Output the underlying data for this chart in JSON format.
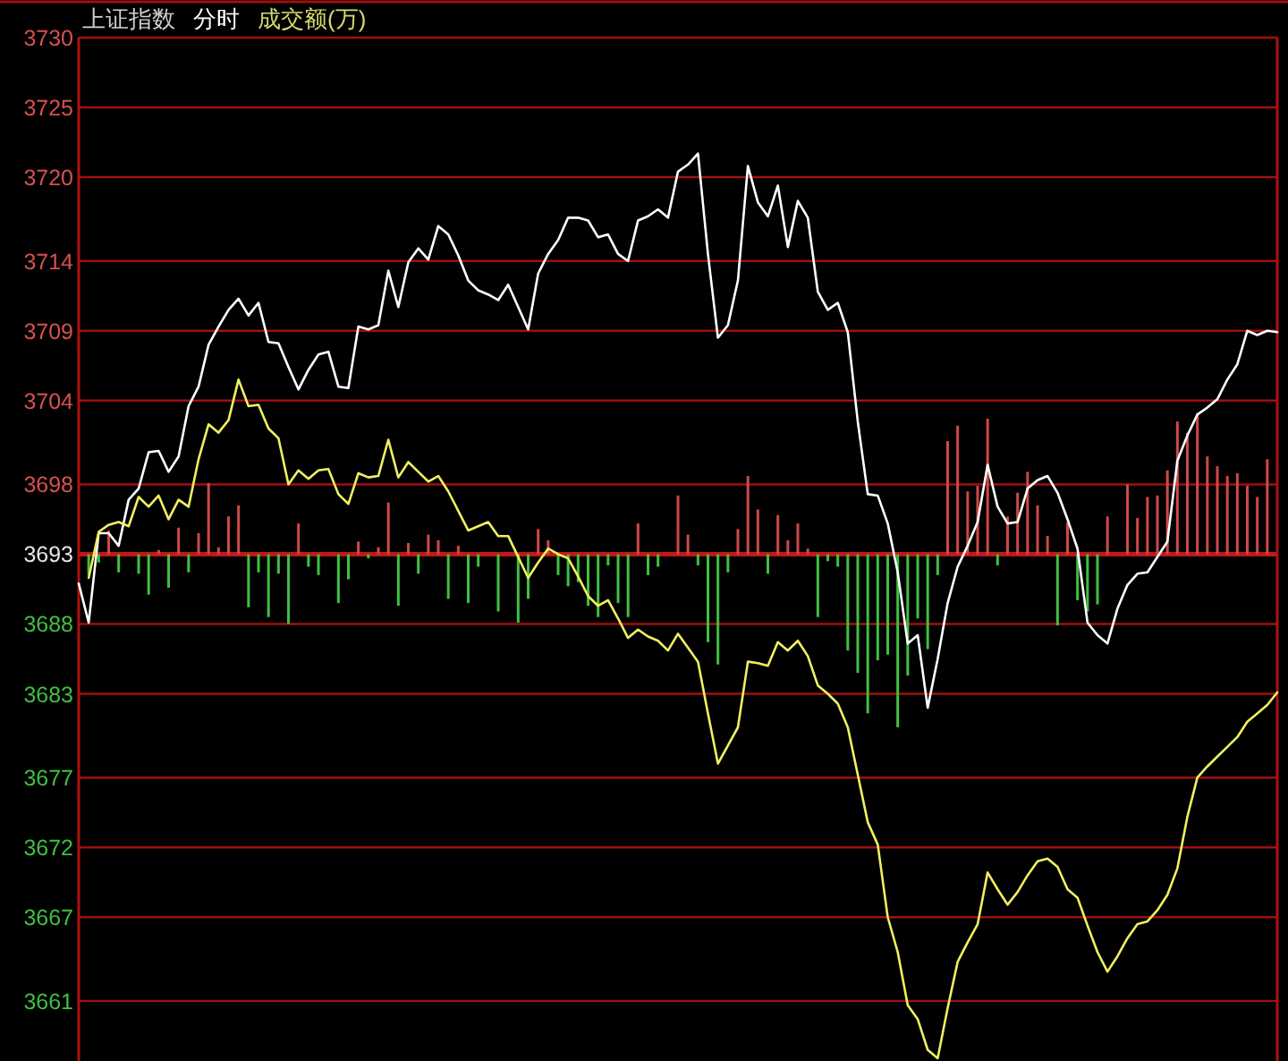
{
  "chart_data": {
    "type": "line",
    "title": "上证指数",
    "subtitle": "分时",
    "annotations": [
      "成交额(万)"
    ],
    "categories": [
      null,
      null,
      null,
      null,
      null,
      null,
      null,
      null,
      null,
      null,
      null,
      null,
      null,
      null,
      null,
      null,
      null,
      null,
      null,
      null,
      null,
      null,
      null,
      null,
      null,
      null,
      null,
      null,
      null,
      null,
      null,
      null,
      null,
      null,
      null,
      null,
      null,
      null,
      null,
      null,
      null,
      null,
      null,
      null,
      null,
      null,
      null,
      null,
      null,
      null,
      null,
      null,
      null,
      null,
      null,
      null,
      null,
      null,
      null,
      null,
      null,
      null,
      null,
      null,
      null,
      null,
      null,
      null,
      null,
      null,
      null,
      null,
      null,
      null,
      null,
      null,
      null,
      null,
      null,
      null,
      null,
      null,
      null,
      null,
      null,
      null,
      null,
      null,
      null,
      null,
      null,
      null,
      null,
      null,
      null,
      null,
      null,
      null,
      null,
      null,
      null,
      null,
      null,
      null,
      null,
      null,
      null,
      null,
      null,
      null,
      null,
      null,
      null,
      null,
      null,
      null,
      null,
      null,
      null,
      null,
      null
    ],
    "ylim": [
      3656.7,
      3730
    ],
    "yticks": [
      3730,
      3725,
      3720,
      3714,
      3709,
      3704,
      3698,
      3693,
      3688,
      3683,
      3677,
      3672,
      3667,
      3661
    ],
    "tick_labels": "y",
    "grid": "y",
    "marker": "none",
    "ref_lines": [
      {
        "axis": "y",
        "value": 3693,
        "color": "#c01818"
      }
    ],
    "series": [
      {
        "type": "bar",
        "color": "#d04848",
        "values": [
          null,
          null,
          null,
          1.7,
          null,
          null,
          null,
          null,
          0.3,
          null,
          1.9,
          null,
          1.5,
          5.1,
          0.5,
          2.7,
          3.5,
          null,
          null,
          null,
          null,
          null,
          2.2,
          null,
          null,
          null,
          null,
          null,
          0.9,
          null,
          0.5,
          3.7,
          null,
          0.8,
          null,
          1.4,
          1.0,
          null,
          0.6,
          null,
          null,
          null,
          null,
          null,
          null,
          null,
          1.8,
          1.0,
          null,
          null,
          null,
          null,
          null,
          null,
          null,
          null,
          2.2,
          null,
          null,
          null,
          4.2,
          1.4,
          null,
          null,
          null,
          null,
          1.8,
          5.6,
          3.2,
          null,
          2.8,
          1.0,
          2.2,
          0.4,
          null,
          null,
          null,
          null,
          null,
          null,
          null,
          null,
          null,
          null,
          null,
          null,
          null,
          8.1,
          9.2,
          4.5,
          4.9,
          9.7,
          null,
          2.7,
          4.4,
          5.9,
          3.5,
          1.3,
          null,
          2.3,
          null,
          null,
          null,
          2.7,
          null,
          5.0,
          2.6,
          4.1,
          4.2,
          6.0,
          9.5,
          8.7,
          10.1,
          7.0,
          6.3,
          5.6,
          5.8,
          4.9,
          4.1,
          6.8,
          null
        ],
        "base": [
          null,
          null,
          null,
          3693,
          null,
          null,
          null,
          null,
          3693,
          null,
          3693,
          null,
          3693,
          3693,
          3693,
          3693,
          3693,
          null,
          null,
          null,
          null,
          null,
          3693,
          null,
          null,
          null,
          null,
          null,
          3693,
          null,
          3693,
          3693,
          null,
          3693,
          null,
          3693,
          3693,
          null,
          3693,
          null,
          null,
          null,
          null,
          null,
          null,
          null,
          3693,
          3693,
          null,
          null,
          null,
          null,
          null,
          null,
          null,
          null,
          3693,
          null,
          null,
          null,
          3693,
          3693,
          null,
          null,
          null,
          null,
          3693,
          3693,
          3693,
          null,
          3693,
          3693,
          3693,
          3693,
          null,
          null,
          null,
          null,
          null,
          null,
          null,
          null,
          null,
          null,
          null,
          null,
          null,
          3693,
          3693,
          3693,
          3693,
          3693,
          null,
          3693,
          3693,
          3693,
          3693,
          3693,
          null,
          3693,
          null,
          null,
          null,
          3693,
          null,
          3693,
          3693,
          3693,
          3693,
          3693,
          3693,
          3693,
          3693,
          3693,
          3693,
          3693,
          3693,
          3693,
          3693,
          3693,
          null
        ]
      },
      {
        "type": "bar",
        "color": "#40c040",
        "values": [
          null,
          -1.5,
          -0.6,
          null,
          -1.3,
          null,
          -1.4,
          -2.9,
          null,
          -2.4,
          null,
          -1.3,
          null,
          null,
          null,
          null,
          null,
          -3.8,
          -1.3,
          -4.5,
          -1.4,
          -5.0,
          null,
          -0.9,
          -1.5,
          null,
          -3.5,
          -1.8,
          null,
          -0.3,
          null,
          null,
          -3.7,
          null,
          -1.4,
          null,
          null,
          -3.2,
          null,
          -3.5,
          -0.9,
          null,
          -4.1,
          null,
          -4.9,
          -3.2,
          null,
          null,
          -1.5,
          -2.3,
          -2.0,
          -3.7,
          -4.5,
          -0.8,
          -3.5,
          -4.5,
          null,
          -1.5,
          -0.9,
          null,
          null,
          null,
          -0.8,
          -6.3,
          -7.9,
          -1.3,
          null,
          null,
          null,
          -1.4,
          null,
          null,
          null,
          null,
          -4.5,
          -0.5,
          -0.9,
          -6.9,
          -8.5,
          -11.4,
          -7.6,
          -7.2,
          -12.4,
          -8.7,
          -4.6,
          -6.8,
          -1.5,
          null,
          null,
          null,
          null,
          null,
          -0.8,
          null,
          null,
          null,
          null,
          null,
          -5.1,
          null,
          -3.3,
          -4.1,
          -3.6,
          null,
          null,
          null,
          null,
          null,
          null,
          null,
          null,
          null,
          null,
          null,
          null,
          null,
          null,
          null,
          null,
          null,
          null
        ],
        "base": [
          null,
          3693,
          3693,
          null,
          3693,
          null,
          3693,
          3693,
          null,
          3693,
          null,
          3693,
          null,
          null,
          null,
          null,
          null,
          3693,
          3693,
          3693,
          3693,
          3693,
          null,
          3693,
          3693,
          null,
          3693,
          3693,
          null,
          3693,
          null,
          null,
          3693,
          null,
          3693,
          null,
          null,
          3693,
          null,
          3693,
          3693,
          null,
          3693,
          null,
          3693,
          3693,
          null,
          null,
          3693,
          3693,
          3693,
          3693,
          3693,
          3693,
          3693,
          3693,
          null,
          3693,
          3693,
          null,
          null,
          null,
          3693,
          3693,
          3693,
          3693,
          null,
          null,
          null,
          3693,
          null,
          null,
          null,
          null,
          3693,
          3693,
          3693,
          3693,
          3693,
          3693,
          3693,
          3693,
          3693,
          3693,
          3693,
          3693,
          3693,
          null,
          null,
          null,
          null,
          null,
          3693,
          null,
          null,
          null,
          null,
          null,
          3693,
          null,
          3693,
          3693,
          3693,
          null,
          null,
          null,
          null,
          null,
          null,
          null,
          null,
          null,
          null,
          null,
          null,
          null,
          null,
          null,
          null,
          null,
          null
        ]
      },
      {
        "color": "#ffffff",
        "values": [
          3690.9,
          3688.1,
          3694.5,
          3694.5,
          3693.6,
          3696.9,
          3697.7,
          3700.3,
          3700.4,
          3698.9,
          3700.0,
          3703.6,
          3705.0,
          3708.0,
          3709.3,
          3710.5,
          3711.3,
          3710.1,
          3711.0,
          3708.2,
          3708.1,
          3706.4,
          3704.8,
          3706.2,
          3707.3,
          3707.5,
          3705.0,
          3704.9,
          3709.3,
          3709.1,
          3709.4,
          3713.3,
          3710.7,
          3713.9,
          3714.9,
          3714.1,
          3716.5,
          3715.9,
          3714.4,
          3712.6,
          3711.9,
          3711.6,
          3711.2,
          3712.3,
          3710.7,
          3709.1,
          3713.1,
          3714.5,
          3715.5,
          3717.1,
          3717.1,
          3716.9,
          3715.7,
          3715.9,
          3714.5,
          3714.0,
          3716.9,
          3717.2,
          3717.7,
          3717.1,
          3720.4,
          3720.9,
          3721.7,
          3714.5,
          3708.5,
          3709.4,
          3712.6,
          3720.8,
          3718.2,
          3717.2,
          3719.4,
          3715.0,
          3718.3,
          3717.1,
          3711.8,
          3710.5,
          3711.0,
          3708.9,
          3702.5,
          3697.3,
          3697.2,
          3695.2,
          3691.7,
          3686.6,
          3687.2,
          3682.0,
          3685.5,
          3689.5,
          3692.1,
          3693.6,
          3695.3,
          3699.4,
          3696.4,
          3695.2,
          3695.3,
          3697.7,
          3698.3,
          3698.6,
          3697.4,
          3695.5,
          3693.4,
          3688.1,
          3687.2,
          3686.6,
          3689.1,
          3690.8,
          3691.6,
          3691.7,
          3692.8,
          3693.9,
          3699.7,
          3701.5,
          3703.0,
          3703.5,
          3704.1,
          3705.5,
          3706.6,
          3709.0,
          3708.7,
          3709.0,
          3708.9
        ]
      },
      {
        "color": "#f0f060",
        "values": [
          null,
          3691.3,
          3694.6,
          3695.1,
          3695.3,
          3695.0,
          3697.1,
          3696.4,
          3697.2,
          3695.5,
          3696.9,
          3696.4,
          3699.8,
          3702.3,
          3701.7,
          3702.6,
          3705.5,
          3703.6,
          3703.7,
          3702.0,
          3701.3,
          3698.0,
          3699.0,
          3698.4,
          3699.0,
          3699.1,
          3697.3,
          3696.6,
          3698.8,
          3698.5,
          3698.6,
          3701.2,
          3698.5,
          3699.6,
          3698.9,
          3698.2,
          3698.6,
          3697.5,
          3696.1,
          3694.7,
          3695.0,
          3695.3,
          3694.3,
          3694.3,
          3692.8,
          3691.3,
          3692.4,
          3693.4,
          3693.0,
          3692.7,
          3691.4,
          3690.0,
          3689.3,
          3689.7,
          3688.4,
          3687.0,
          3687.6,
          3687.1,
          3686.8,
          3686.1,
          3687.3,
          3686.3,
          3685.3,
          3681.6,
          3678.0,
          3679.3,
          3680.6,
          3685.3,
          3685.2,
          3685.0,
          3686.7,
          3686.1,
          3686.8,
          3685.7,
          3683.6,
          3683.0,
          3682.3,
          3680.6,
          3677.2,
          3673.8,
          3672.2,
          3667.0,
          3664.5,
          3660.7,
          3659.7,
          3657.5,
          3656.9,
          3660.5,
          3663.8,
          3665.2,
          3666.5,
          3670.2,
          3669.0,
          3667.9,
          3668.8,
          3670.0,
          3671.0,
          3671.2,
          3670.6,
          3669.0,
          3668.4,
          3666.4,
          3664.5,
          3663.1,
          3664.2,
          3665.5,
          3666.5,
          3666.7,
          3667.5,
          3668.6,
          3670.5,
          3674.2,
          3677.0,
          3677.8,
          3678.5,
          3679.2,
          3679.9,
          3681.0,
          3681.6,
          3682.2,
          3683.1
        ]
      }
    ]
  }
}
